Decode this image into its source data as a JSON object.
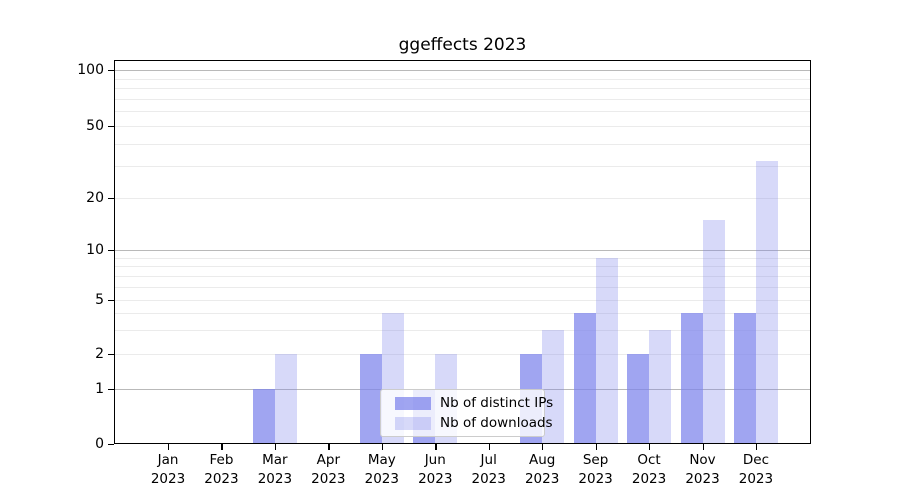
{
  "chart_data": {
    "type": "bar",
    "title": "ggeffects 2023",
    "categories": [
      "Jan",
      "Feb",
      "Mar",
      "Apr",
      "May",
      "Jun",
      "Jul",
      "Aug",
      "Sep",
      "Oct",
      "Nov",
      "Dec"
    ],
    "category_year": "2023",
    "series": [
      {
        "name": "Nb of distinct IPs",
        "values": [
          0,
          0,
          1,
          0,
          2,
          1,
          0,
          2,
          4,
          2,
          4,
          4
        ],
        "color": "#7C82EB",
        "alpha": 0.72
      },
      {
        "name": "Nb of downloads",
        "values": [
          0,
          0,
          2,
          0,
          4,
          2,
          0,
          3,
          9,
          3,
          15,
          32
        ],
        "color": "#7C82EB",
        "alpha": 0.3
      }
    ],
    "y_ticks": [
      0,
      1,
      2,
      5,
      10,
      20,
      50,
      100
    ],
    "y_major_gridlines": [
      1,
      10,
      100
    ],
    "y_minor_gridlines": [
      2,
      3,
      4,
      5,
      6,
      7,
      8,
      9,
      20,
      30,
      40,
      50,
      60,
      70,
      80,
      90
    ],
    "y_scale": "pseudo-log",
    "ylim": [
      0,
      100
    ],
    "xlabel": "",
    "ylabel": "",
    "grid": true,
    "legend": {
      "labels": [
        "Nb of distinct IPs",
        "Nb of downloads"
      ],
      "position": "inside lower center"
    }
  },
  "colors": {
    "background": "#ffffff",
    "bar_base": "#7C82EB",
    "major_grid": "#b9b9b9",
    "minor_grid": "#ebebeb",
    "spine": "#000000",
    "legend_border": "#cccccc",
    "text": "#000000"
  }
}
